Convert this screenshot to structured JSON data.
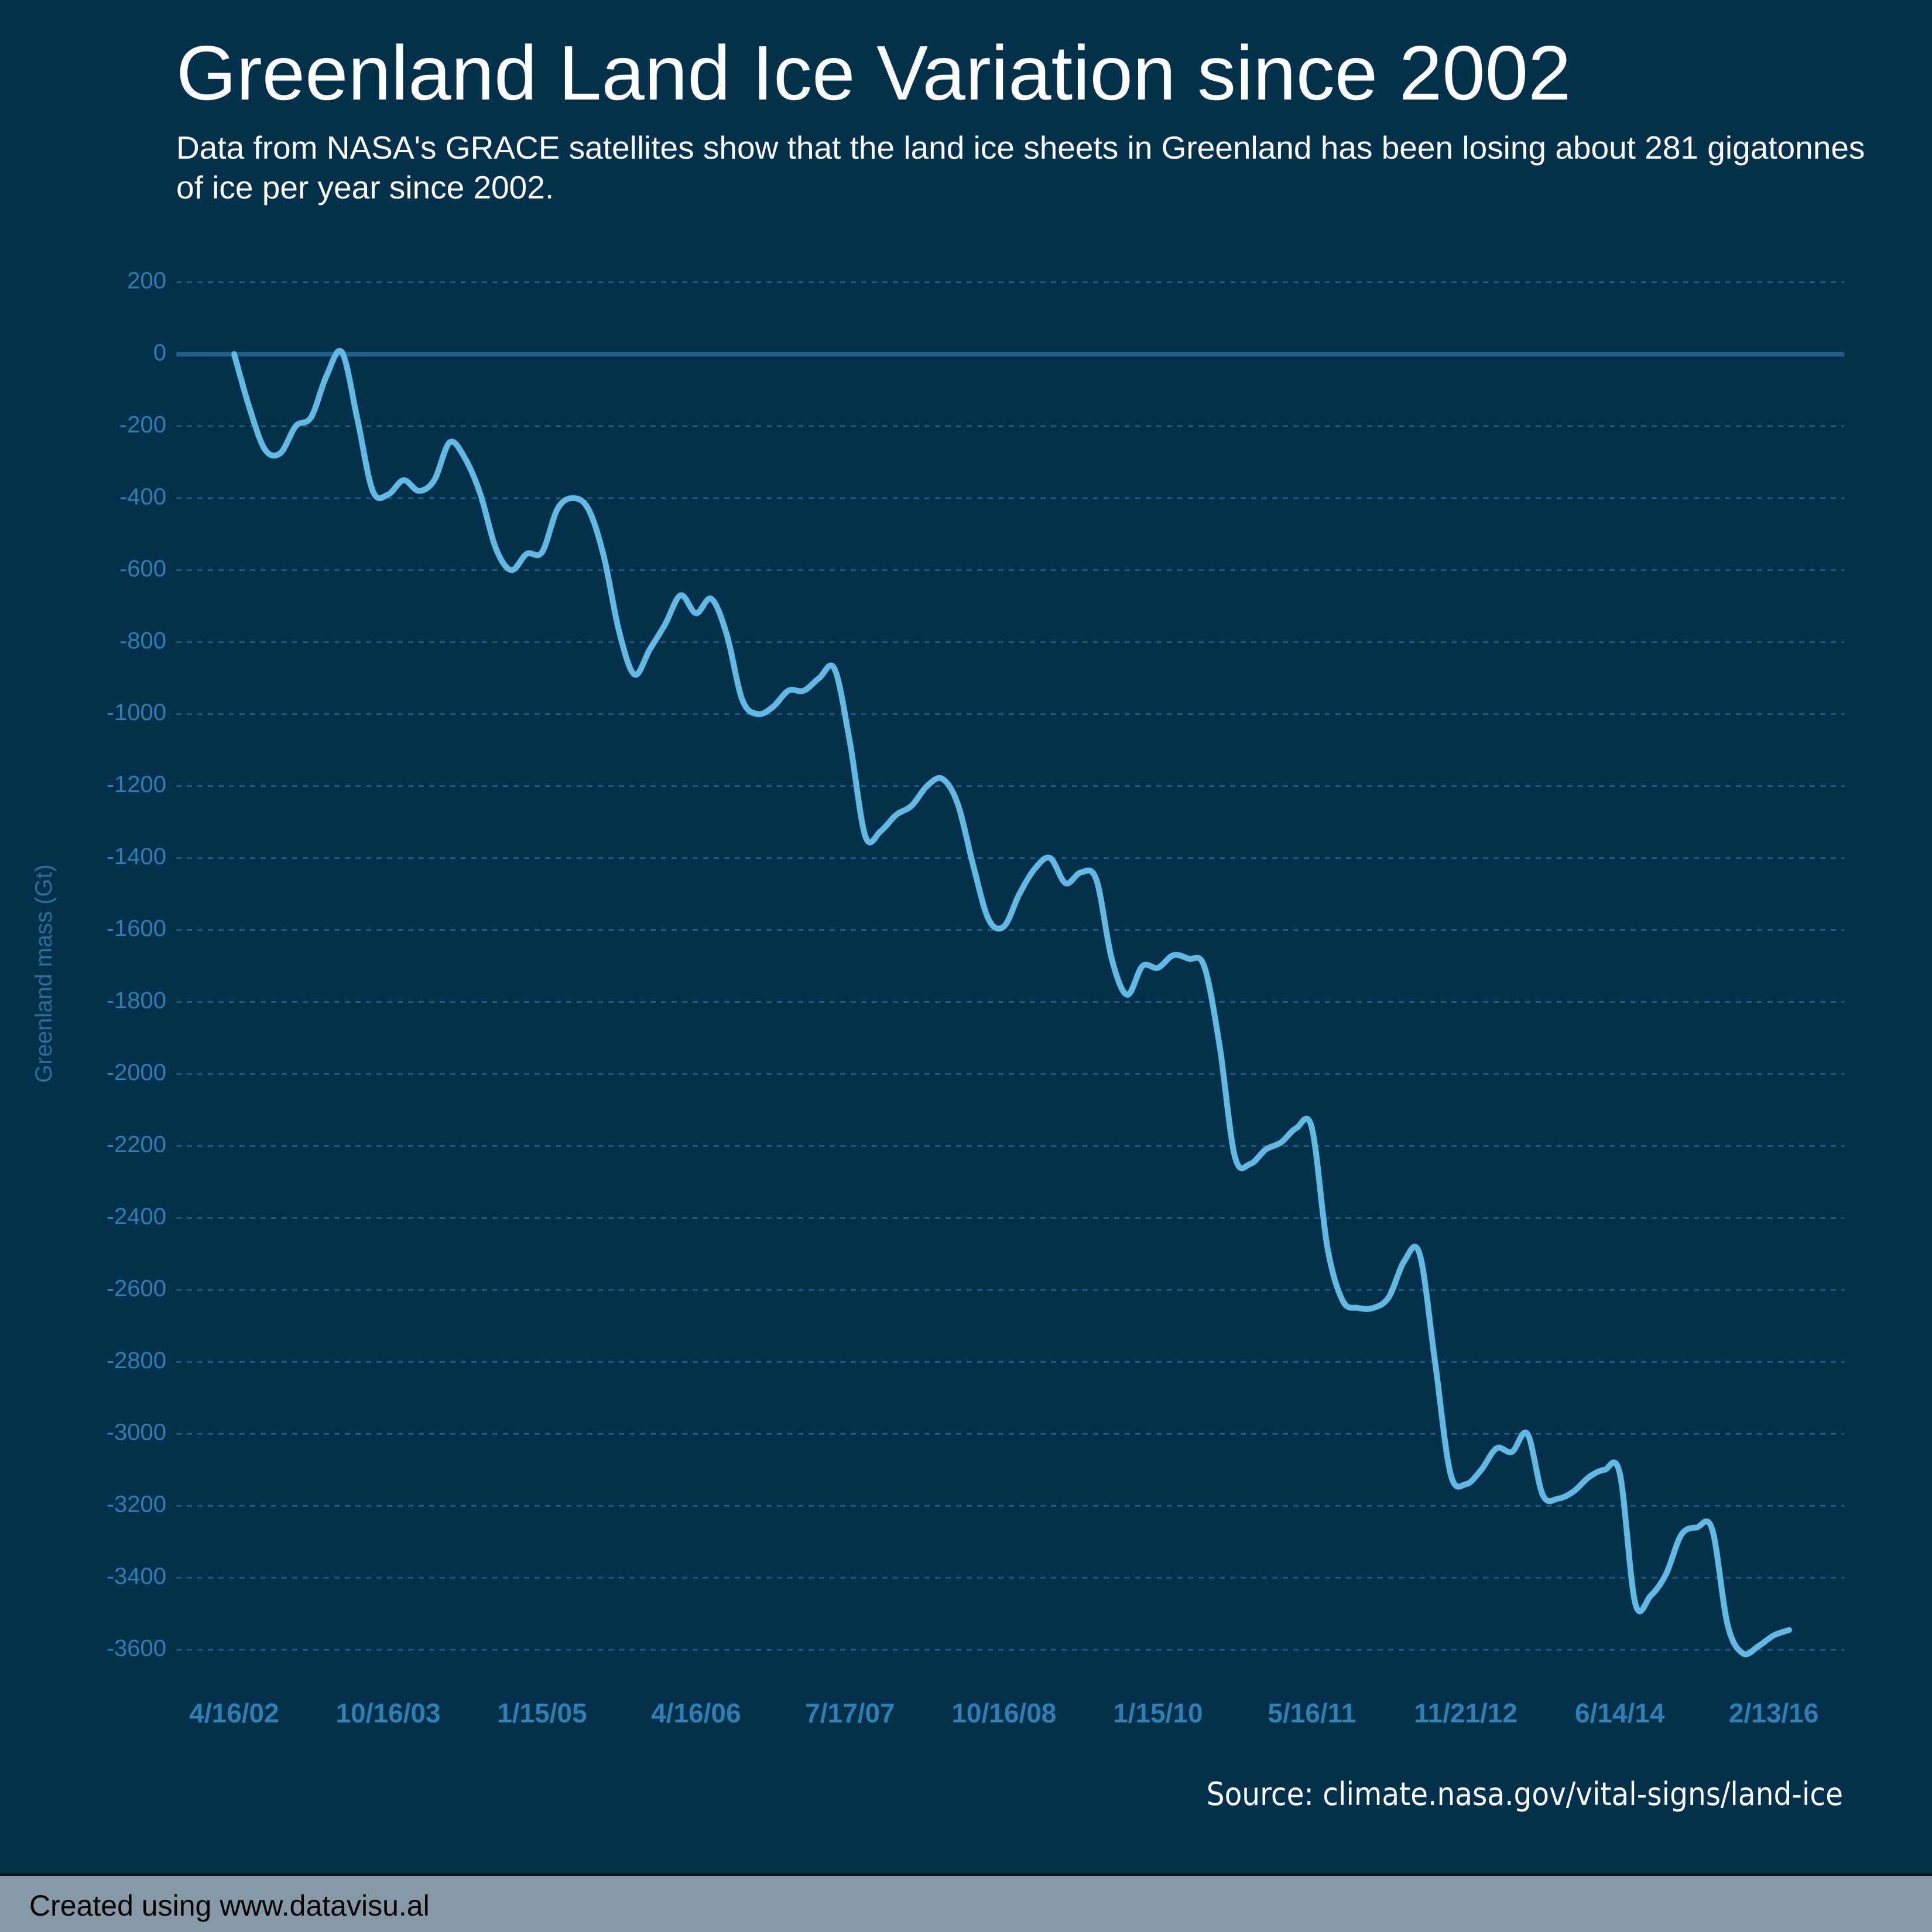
{
  "chart_data": {
    "type": "line",
    "title": "Greenland Land Ice Variation since 2002",
    "subtitle": "Data from NASA's GRACE satellites show that the land ice sheets in Greenland has been losing about 281 gigatonnes of ice per year since 2002.",
    "y_label": "Greenland mass (Gt)",
    "source": "Source: climate.nasa.gov/vital-signs/land-ice",
    "categories": [
      "4/16/02",
      null,
      null,
      null,
      null,
      null,
      null,
      null,
      null,
      null,
      "10/16/03",
      null,
      null,
      null,
      null,
      null,
      null,
      null,
      null,
      null,
      "1/15/05",
      null,
      null,
      null,
      null,
      null,
      null,
      null,
      null,
      null,
      "4/16/06",
      null,
      null,
      null,
      null,
      null,
      null,
      null,
      null,
      null,
      "7/17/07",
      null,
      null,
      null,
      null,
      null,
      null,
      null,
      null,
      null,
      "10/16/08",
      null,
      null,
      null,
      null,
      null,
      null,
      null,
      null,
      null,
      "1/15/10",
      null,
      null,
      null,
      null,
      null,
      null,
      null,
      null,
      null,
      "5/16/11",
      null,
      null,
      null,
      null,
      null,
      null,
      null,
      null,
      null,
      "11/21/12",
      null,
      null,
      null,
      null,
      null,
      null,
      null,
      null,
      null,
      "6/14/14",
      null,
      null,
      null,
      null,
      null,
      null,
      null,
      null,
      null,
      "2/13/16",
      null
    ],
    "series": [
      {
        "name": "Greenland mass",
        "color": "#62b9e4",
        "values": [
          0,
          -150,
          -265,
          -275,
          -200,
          -175,
          -60,
          5,
          -180,
          -380,
          -390,
          -350,
          -380,
          -350,
          -245,
          -290,
          -390,
          -540,
          -600,
          -555,
          -550,
          -430,
          -400,
          -430,
          -560,
          -770,
          -890,
          -820,
          -750,
          -670,
          -720,
          -680,
          -780,
          -960,
          -1000,
          -980,
          -935,
          -935,
          -900,
          -875,
          -1080,
          -1340,
          -1325,
          -1280,
          -1255,
          -1200,
          -1180,
          -1250,
          -1420,
          -1570,
          -1590,
          -1500,
          -1430,
          -1400,
          -1470,
          -1440,
          -1460,
          -1680,
          -1780,
          -1700,
          -1705,
          -1670,
          -1680,
          -1700,
          -1920,
          -2230,
          -2250,
          -2210,
          -2190,
          -2150,
          -2150,
          -2480,
          -2630,
          -2650,
          -2650,
          -2620,
          -2520,
          -2500,
          -2800,
          -3110,
          -3140,
          -3100,
          -3040,
          -3050,
          -3000,
          -3170,
          -3180,
          -3160,
          -3120,
          -3100,
          -3110,
          -3470,
          -3450,
          -3390,
          -3280,
          -3260,
          -3265,
          -3530,
          -3610,
          -3590,
          -3560,
          -3545
        ]
      }
    ],
    "ylim": [
      -3600,
      200
    ],
    "yticks": [
      200,
      0,
      -200,
      -400,
      -600,
      -800,
      -1000,
      -1200,
      -1400,
      -1600,
      -1800,
      -2000,
      -2200,
      -2400,
      -2600,
      -2800,
      -3000,
      -3200,
      -3400,
      -3600
    ],
    "grid": true
  },
  "footer": "Created using www.datavisu.al"
}
